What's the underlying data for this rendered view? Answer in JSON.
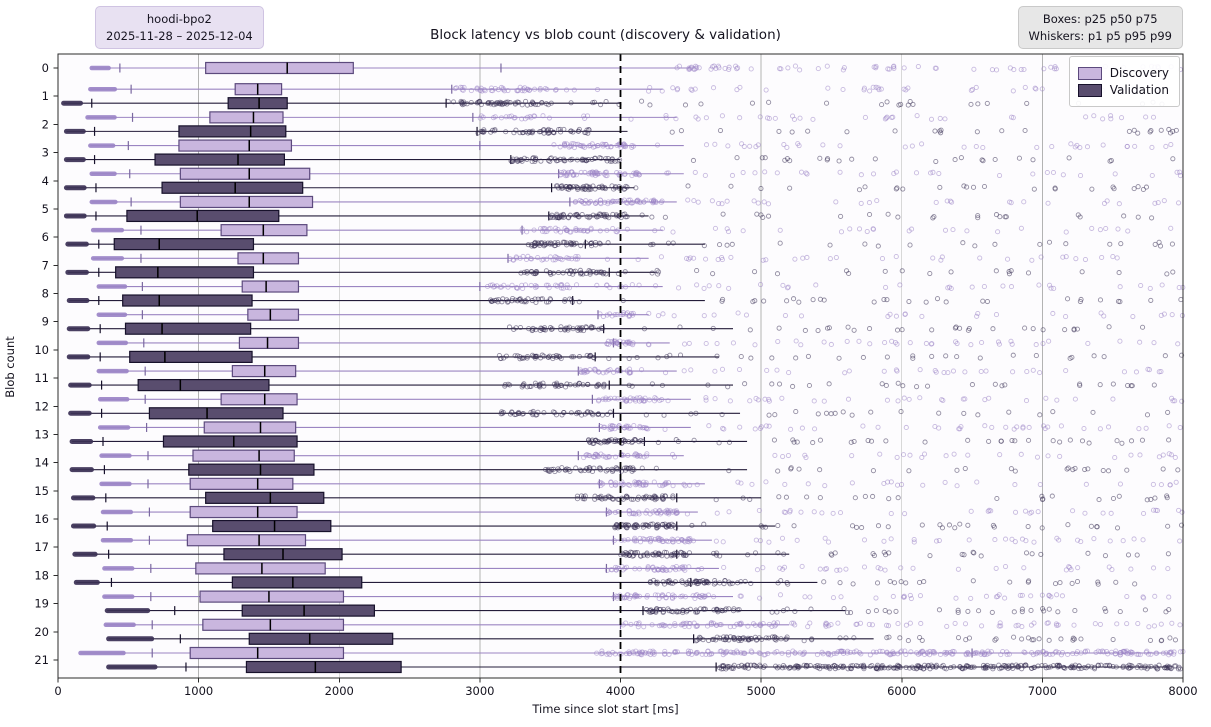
{
  "figure": {
    "title": "Block latency vs blob count (discovery & validation)",
    "annotation_left": {
      "line1": "hoodi-bpo2",
      "line2": "2025-11-28 – 2025-12-04"
    },
    "annotation_right": {
      "line1": "Boxes: p25 p50 p75",
      "line2": "Whiskers: p1 p5 p95 p99"
    },
    "legend": {
      "items": [
        {
          "label": "Discovery"
        },
        {
          "label": "Validation"
        }
      ]
    }
  },
  "chart_data": {
    "type": "boxplot",
    "orientation": "horizontal",
    "title": "Block latency vs blob count (discovery & validation)",
    "xlabel": "Time since slot start [ms]",
    "ylabel": "Blob count",
    "xlim": [
      0,
      8000
    ],
    "x_ticks": [
      0,
      1000,
      2000,
      3000,
      4000,
      5000,
      6000,
      7000,
      8000
    ],
    "y_categories": [
      0,
      1,
      2,
      3,
      4,
      5,
      6,
      7,
      8,
      9,
      10,
      11,
      12,
      13,
      14,
      15,
      16,
      17,
      18,
      19,
      20,
      21
    ],
    "grid": "vertical-only",
    "reference_line_x": 4000,
    "box_stats": "p25 p50 p75",
    "whisker_stats": "p1 p5 p95 p99",
    "legend_position": "upper-right",
    "style": {
      "discovery_fill": "#c9b6de",
      "discovery_edge": "#5c4a7d",
      "discovery_line": "#9b85c2",
      "discovery_dot": "#9c85c7",
      "validation_fill": "#594d6e",
      "validation_edge": "#17112b",
      "validation_line": "#241c3a",
      "validation_dot": "#3b3155",
      "median_color": "#000000",
      "grid_color": "#b3b3b3",
      "frame_color": "#2b2b2b",
      "ref_line_color": "#000000"
    },
    "rows": [
      {
        "blob": 0,
        "discovery": {
          "p1": 240,
          "p5": 440,
          "p25": 1050,
          "p50": 1630,
          "p75": 2100,
          "p95": 3150,
          "p99": 4500,
          "cluster": [
            4400,
            4900,
            25
          ],
          "tail": [
            4900,
            8000,
            45
          ]
        },
        "validation": null
      },
      {
        "blob": 1,
        "discovery": {
          "p1": 230,
          "p5": 520,
          "p25": 1260,
          "p50": 1420,
          "p75": 1590,
          "p95": 2800,
          "p99": 4300,
          "cluster": [
            2800,
            3550,
            45
          ],
          "tail": [
            3600,
            8000,
            45
          ]
        },
        "validation": {
          "p1": 40,
          "p5": 240,
          "p25": 1210,
          "p50": 1430,
          "p75": 1630,
          "p95": 2760,
          "p99": 4000,
          "cluster": [
            2760,
            3520,
            55
          ],
          "tail": [
            3550,
            8000,
            28
          ]
        }
      },
      {
        "blob": 2,
        "discovery": {
          "p1": 210,
          "p5": 530,
          "p25": 1080,
          "p50": 1390,
          "p75": 1600,
          "p95": 2950,
          "p99": 4400,
          "cluster": [
            3000,
            3550,
            20
          ],
          "tail": [
            3550,
            8000,
            40
          ]
        },
        "validation": {
          "p1": 60,
          "p5": 260,
          "p25": 860,
          "p50": 1370,
          "p75": 1620,
          "p95": 2980,
          "p99": 4050,
          "cluster": [
            2980,
            3780,
            55
          ],
          "tail": [
            3800,
            8000,
            25
          ]
        }
      },
      {
        "blob": 3,
        "discovery": {
          "p1": 230,
          "p5": 500,
          "p25": 860,
          "p50": 1360,
          "p75": 1660,
          "p95": 3000,
          "p99": 4450,
          "cluster": [
            3500,
            4100,
            50
          ],
          "tail": [
            4100,
            8000,
            35
          ]
        },
        "validation": {
          "p1": 60,
          "p5": 260,
          "p25": 690,
          "p50": 1280,
          "p75": 1610,
          "p95": 3220,
          "p99": 4000,
          "cluster": [
            3220,
            4000,
            60
          ],
          "tail": [
            4000,
            8000,
            25
          ]
        }
      },
      {
        "blob": 4,
        "discovery": {
          "p1": 240,
          "p5": 510,
          "p25": 870,
          "p50": 1360,
          "p75": 1790,
          "p95": 3560,
          "p99": 4450,
          "cluster": [
            3560,
            4150,
            55
          ],
          "tail": [
            4150,
            8000,
            32
          ]
        },
        "validation": {
          "p1": 60,
          "p5": 270,
          "p25": 740,
          "p50": 1260,
          "p75": 1740,
          "p95": 3510,
          "p99": 4100,
          "cluster": [
            3510,
            4060,
            55
          ],
          "tail": [
            4060,
            8000,
            25
          ]
        }
      },
      {
        "blob": 5,
        "discovery": {
          "p1": 240,
          "p5": 520,
          "p25": 870,
          "p50": 1360,
          "p75": 1810,
          "p95": 3640,
          "p99": 4400,
          "cluster": [
            3650,
            4300,
            55
          ],
          "tail": [
            4300,
            8000,
            30
          ]
        },
        "validation": {
          "p1": 60,
          "p5": 270,
          "p25": 490,
          "p50": 990,
          "p75": 1570,
          "p95": 3490,
          "p99": 4200,
          "cluster": [
            3500,
            4050,
            55
          ],
          "tail": [
            4050,
            8000,
            25
          ]
        }
      },
      {
        "blob": 6,
        "discovery": {
          "p1": 250,
          "p5": 590,
          "p25": 1160,
          "p50": 1460,
          "p75": 1770,
          "p95": 3300,
          "p99": 4300,
          "cluster": [
            3300,
            3800,
            35
          ],
          "tail": [
            3800,
            8000,
            35
          ]
        },
        "validation": {
          "p1": 70,
          "p5": 290,
          "p25": 400,
          "p50": 720,
          "p75": 1390,
          "p95": 3750,
          "p99": 4600,
          "cluster": [
            3330,
            3800,
            45
          ],
          "tail": [
            3800,
            8000,
            30
          ]
        }
      },
      {
        "blob": 7,
        "discovery": {
          "p1": 250,
          "p5": 590,
          "p25": 1280,
          "p50": 1460,
          "p75": 1710,
          "p95": 3200,
          "p99": 4200,
          "cluster": [
            3200,
            3700,
            30
          ],
          "tail": [
            3700,
            8000,
            35
          ]
        },
        "validation": {
          "p1": 70,
          "p5": 290,
          "p25": 410,
          "p50": 710,
          "p75": 1390,
          "p95": 3920,
          "p99": 4250,
          "cluster": [
            3270,
            3920,
            45
          ],
          "tail": [
            3920,
            8000,
            25
          ]
        }
      },
      {
        "blob": 8,
        "discovery": {
          "p1": 290,
          "p5": 600,
          "p25": 1310,
          "p50": 1480,
          "p75": 1710,
          "p95": 3000,
          "p99": 4300,
          "cluster": [
            3050,
            3700,
            35
          ],
          "tail": [
            3700,
            8000,
            40
          ]
        },
        "validation": {
          "p1": 80,
          "p5": 290,
          "p25": 460,
          "p50": 720,
          "p75": 1380,
          "p95": 3660,
          "p99": 4600,
          "cluster": [
            3050,
            3660,
            40
          ],
          "tail": [
            3660,
            8000,
            30
          ]
        }
      },
      {
        "blob": 9,
        "discovery": {
          "p1": 290,
          "p5": 600,
          "p25": 1350,
          "p50": 1510,
          "p75": 1710,
          "p95": 3840,
          "p99": 4200,
          "cluster": [
            3840,
            4100,
            18
          ],
          "tail": [
            4100,
            8000,
            28
          ]
        },
        "validation": {
          "p1": 80,
          "p5": 300,
          "p25": 480,
          "p50": 740,
          "p75": 1370,
          "p95": 3880,
          "p99": 4800,
          "cluster": [
            3210,
            3880,
            45
          ],
          "tail": [
            3880,
            8000,
            30
          ]
        }
      },
      {
        "blob": 10,
        "discovery": {
          "p1": 290,
          "p5": 610,
          "p25": 1290,
          "p50": 1490,
          "p75": 1710,
          "p95": 3950,
          "p99": 4350,
          "cluster": [
            3900,
            4100,
            25
          ],
          "tail": [
            4100,
            8000,
            40
          ]
        },
        "validation": {
          "p1": 80,
          "p5": 300,
          "p25": 510,
          "p50": 760,
          "p75": 1380,
          "p95": 3820,
          "p99": 4700,
          "cluster": [
            3110,
            3820,
            45
          ],
          "tail": [
            3820,
            8000,
            30
          ]
        }
      },
      {
        "blob": 11,
        "discovery": {
          "p1": 290,
          "p5": 620,
          "p25": 1240,
          "p50": 1470,
          "p75": 1690,
          "p95": 3700,
          "p99": 4400,
          "cluster": [
            3700,
            4100,
            30
          ],
          "tail": [
            4100,
            8000,
            35
          ]
        },
        "validation": {
          "p1": 90,
          "p5": 310,
          "p25": 570,
          "p50": 870,
          "p75": 1500,
          "p95": 3920,
          "p99": 4800,
          "cluster": [
            3170,
            3920,
            45
          ],
          "tail": [
            3920,
            8000,
            30
          ]
        }
      },
      {
        "blob": 12,
        "discovery": {
          "p1": 300,
          "p5": 620,
          "p25": 1160,
          "p50": 1470,
          "p75": 1700,
          "p95": 3800,
          "p99": 4500,
          "cluster": [
            3800,
            4300,
            35
          ],
          "tail": [
            4300,
            8000,
            35
          ]
        },
        "validation": {
          "p1": 90,
          "p5": 310,
          "p25": 650,
          "p50": 1060,
          "p75": 1600,
          "p95": 3950,
          "p99": 4850,
          "cluster": [
            3140,
            3950,
            45
          ],
          "tail": [
            3950,
            8000,
            25
          ]
        }
      },
      {
        "blob": 13,
        "discovery": {
          "p1": 300,
          "p5": 630,
          "p25": 1040,
          "p50": 1440,
          "p75": 1690,
          "p95": 3850,
          "p99": 4500,
          "cluster": [
            3850,
            4200,
            30
          ],
          "tail": [
            4200,
            8000,
            40
          ]
        },
        "validation": {
          "p1": 100,
          "p5": 320,
          "p25": 750,
          "p50": 1250,
          "p75": 1700,
          "p95": 4170,
          "p99": 4900,
          "cluster": [
            3760,
            4170,
            45
          ],
          "tail": [
            4170,
            8000,
            35
          ]
        }
      },
      {
        "blob": 14,
        "discovery": {
          "p1": 310,
          "p5": 640,
          "p25": 960,
          "p50": 1430,
          "p75": 1680,
          "p95": 3700,
          "p99": 4450,
          "cluster": [
            3700,
            4200,
            35
          ],
          "tail": [
            4200,
            8000,
            30
          ]
        },
        "validation": {
          "p1": 100,
          "p5": 330,
          "p25": 930,
          "p50": 1440,
          "p75": 1820,
          "p95": 4000,
          "p99": 4900,
          "cluster": [
            3460,
            4100,
            50
          ],
          "tail": [
            4100,
            8000,
            25
          ]
        }
      },
      {
        "blob": 15,
        "discovery": {
          "p1": 310,
          "p5": 640,
          "p25": 940,
          "p50": 1420,
          "p75": 1670,
          "p95": 3850,
          "p99": 4600,
          "cluster": [
            3850,
            4400,
            40
          ],
          "tail": [
            4400,
            8000,
            30
          ]
        },
        "validation": {
          "p1": 110,
          "p5": 340,
          "p25": 1050,
          "p50": 1510,
          "p75": 1890,
          "p95": 4400,
          "p99": 5000,
          "cluster": [
            3690,
            4400,
            55
          ],
          "tail": [
            4400,
            8000,
            25
          ]
        }
      },
      {
        "blob": 16,
        "discovery": {
          "p1": 320,
          "p5": 650,
          "p25": 940,
          "p50": 1420,
          "p75": 1700,
          "p95": 3900,
          "p99": 4550,
          "cluster": [
            3900,
            4400,
            40
          ],
          "tail": [
            4400,
            8000,
            35
          ]
        },
        "validation": {
          "p1": 110,
          "p5": 350,
          "p25": 1100,
          "p50": 1540,
          "p75": 1940,
          "p95": 4400,
          "p99": 5100,
          "cluster": [
            3950,
            4400,
            55
          ],
          "tail": [
            4400,
            8000,
            30
          ]
        }
      },
      {
        "blob": 17,
        "discovery": {
          "p1": 320,
          "p5": 650,
          "p25": 920,
          "p50": 1430,
          "p75": 1760,
          "p95": 3950,
          "p99": 4650,
          "cluster": [
            3950,
            4500,
            45
          ],
          "tail": [
            4500,
            8000,
            35
          ]
        },
        "validation": {
          "p1": 120,
          "p5": 360,
          "p25": 1180,
          "p50": 1600,
          "p75": 2020,
          "p95": 4400,
          "p99": 5200,
          "cluster": [
            4000,
            4500,
            50
          ],
          "tail": [
            4500,
            8000,
            30
          ]
        }
      },
      {
        "blob": 18,
        "discovery": {
          "p1": 330,
          "p5": 660,
          "p25": 980,
          "p50": 1450,
          "p75": 1900,
          "p95": 3900,
          "p99": 4700,
          "cluster": [
            3900,
            4500,
            45
          ],
          "tail": [
            4500,
            8000,
            35
          ]
        },
        "validation": {
          "p1": 130,
          "p5": 380,
          "p25": 1240,
          "p50": 1670,
          "p75": 2160,
          "p95": 4500,
          "p99": 5400,
          "cluster": [
            4200,
            4800,
            50
          ],
          "tail": [
            4800,
            8000,
            30
          ]
        }
      },
      {
        "blob": 19,
        "discovery": {
          "p1": 330,
          "p5": 660,
          "p25": 1010,
          "p50": 1500,
          "p75": 2030,
          "p95": 3950,
          "p99": 4800,
          "cluster": [
            3950,
            4600,
            50
          ],
          "tail": [
            4600,
            8000,
            40
          ]
        },
        "validation": {
          "p1": 350,
          "p5": 830,
          "p25": 1310,
          "p50": 1750,
          "p75": 2250,
          "p95": 4160,
          "p99": 5600,
          "cluster": [
            4160,
            4900,
            55
          ],
          "tail": [
            4900,
            8000,
            35
          ]
        }
      },
      {
        "blob": 20,
        "discovery": {
          "p1": 340,
          "p5": 670,
          "p25": 1030,
          "p50": 1510,
          "p75": 2030,
          "p95": 4000,
          "p99": 5200,
          "cluster": [
            4000,
            5500,
            70
          ],
          "tail": [
            5500,
            8000,
            40
          ]
        },
        "validation": {
          "p1": 360,
          "p5": 870,
          "p25": 1360,
          "p50": 1790,
          "p75": 2380,
          "p95": 4520,
          "p99": 5800,
          "cluster": [
            4520,
            5200,
            55
          ],
          "tail": [
            5200,
            8000,
            35
          ]
        }
      },
      {
        "blob": 21,
        "discovery": {
          "p1": 160,
          "p5": 670,
          "p25": 940,
          "p50": 1420,
          "p75": 2030,
          "p95": 6500,
          "p99": 7900,
          "cluster": [
            3800,
            8000,
            260
          ],
          "tail": null
        },
        "validation": {
          "p1": 360,
          "p5": 910,
          "p25": 1340,
          "p50": 1830,
          "p75": 2440,
          "p95": 4680,
          "p99": 7900,
          "cluster": [
            4680,
            8000,
            280
          ],
          "tail": null
        }
      }
    ]
  }
}
